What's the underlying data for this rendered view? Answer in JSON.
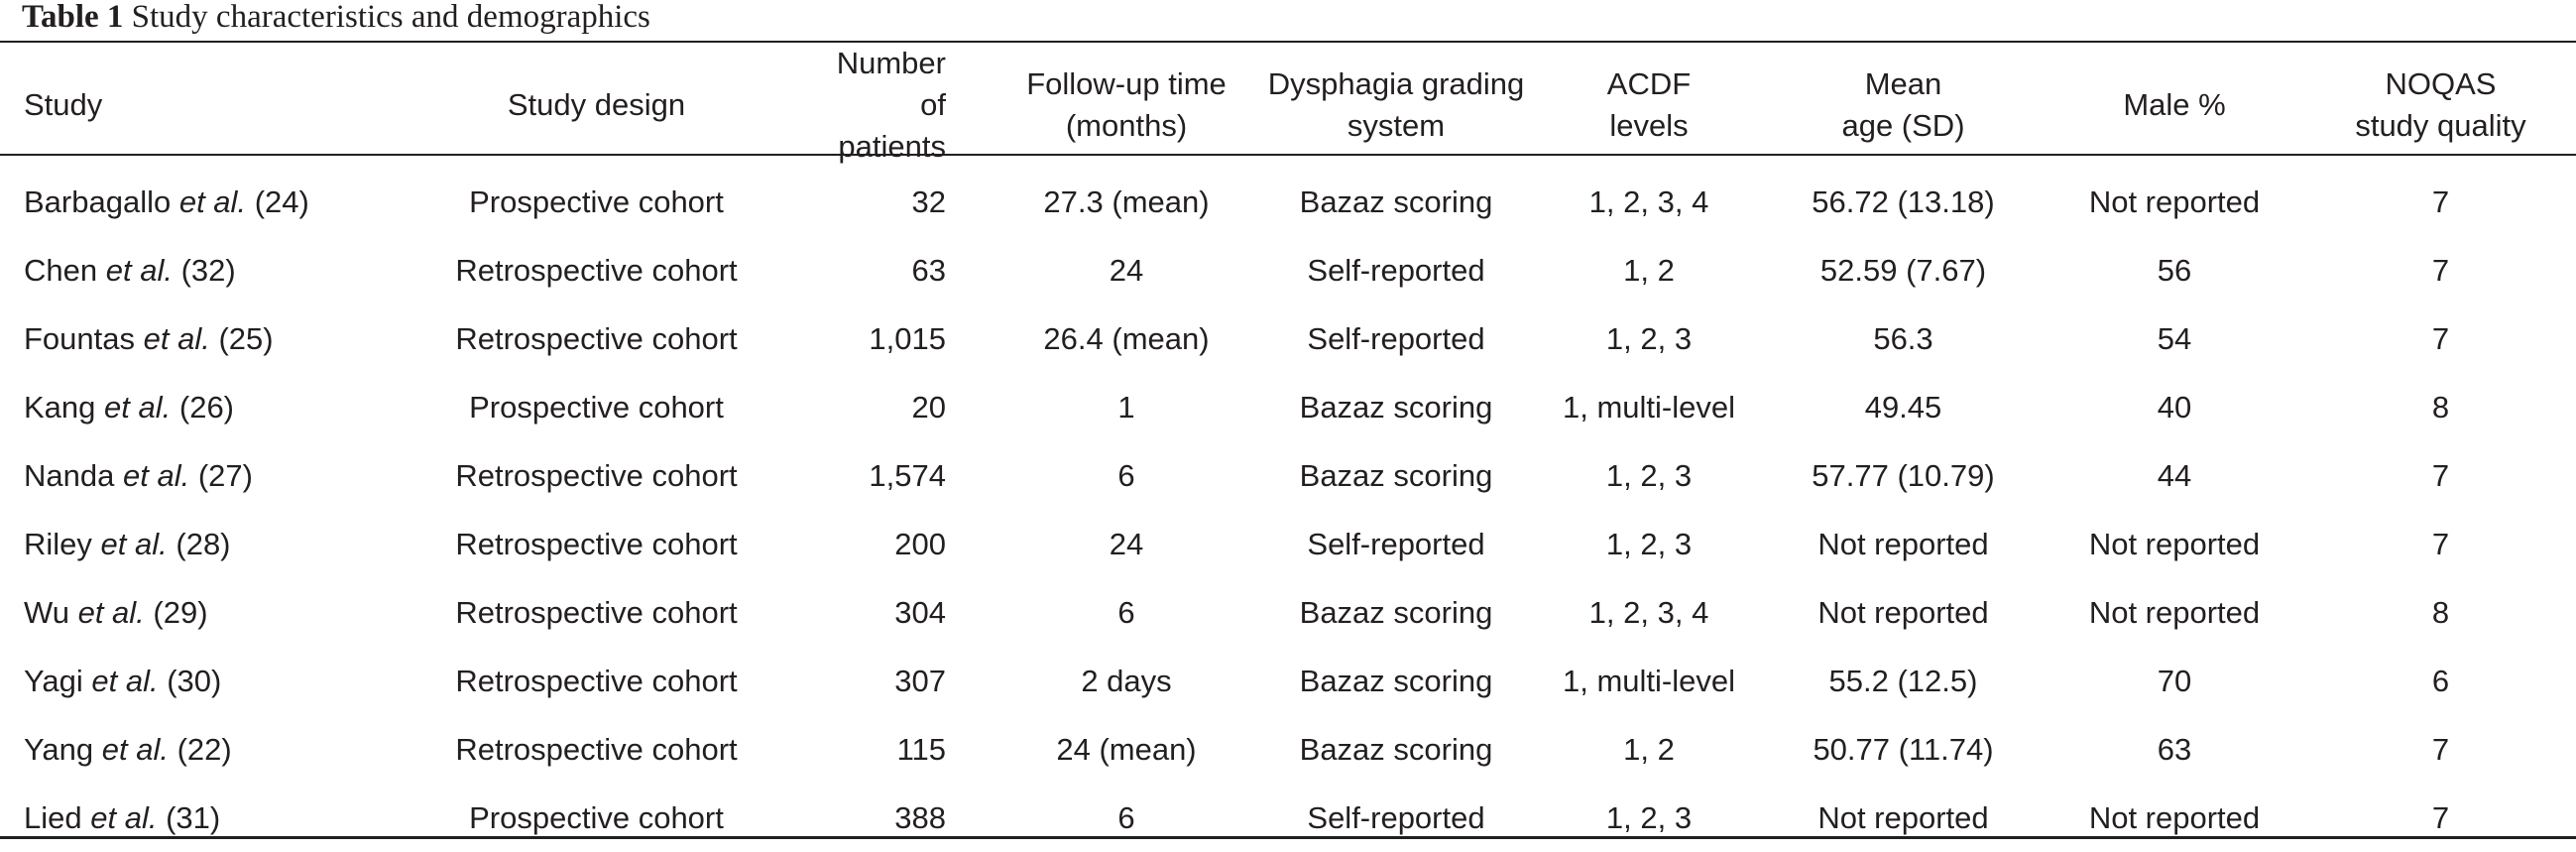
{
  "caption": {
    "label": "Table 1",
    "title": "Study characteristics and demographics"
  },
  "columns": [
    {
      "line1": "Study",
      "line2": ""
    },
    {
      "line1": "Study design",
      "line2": ""
    },
    {
      "line1": "Number of",
      "line2": "patients"
    },
    {
      "line1": "Follow-up time",
      "line2": "(months)"
    },
    {
      "line1": "Dysphagia grading",
      "line2": "system"
    },
    {
      "line1": "ACDF",
      "line2": "levels"
    },
    {
      "line1": "Mean",
      "line2": "age (SD)"
    },
    {
      "line1": "Male %",
      "line2": ""
    },
    {
      "line1": "NOQAS",
      "line2": "study quality"
    }
  ],
  "rows": [
    {
      "author": "Barbagallo",
      "etal": "et al.",
      "ref": "(24)",
      "design": "Prospective cohort",
      "patients": "32",
      "followup": "27.3 (mean)",
      "grading": "Bazaz scoring",
      "levels": "1, 2, 3, 4",
      "age": "56.72 (13.18)",
      "male": "Not reported",
      "quality": "7"
    },
    {
      "author": "Chen",
      "etal": "et al.",
      "ref": "(32)",
      "design": "Retrospective cohort",
      "patients": "63",
      "followup": "24",
      "grading": "Self-reported",
      "levels": "1, 2",
      "age": "52.59 (7.67)",
      "male": "56",
      "quality": "7"
    },
    {
      "author": "Fountas",
      "etal": "et al.",
      "ref": "(25)",
      "design": "Retrospective cohort",
      "patients": "1,015",
      "followup": "26.4 (mean)",
      "grading": "Self-reported",
      "levels": "1, 2, 3",
      "age": "56.3",
      "male": "54",
      "quality": "7"
    },
    {
      "author": "Kang",
      "etal": "et al.",
      "ref": "(26)",
      "design": "Prospective cohort",
      "patients": "20",
      "followup": "1",
      "grading": "Bazaz scoring",
      "levels": "1, multi-level",
      "age": "49.45",
      "male": "40",
      "quality": "8"
    },
    {
      "author": "Nanda",
      "etal": "et al.",
      "ref": "(27)",
      "design": "Retrospective cohort",
      "patients": "1,574",
      "followup": "6",
      "grading": "Bazaz scoring",
      "levels": "1, 2, 3",
      "age": "57.77 (10.79)",
      "male": "44",
      "quality": "7"
    },
    {
      "author": "Riley",
      "etal": "et al.",
      "ref": "(28)",
      "design": "Retrospective cohort",
      "patients": "200",
      "followup": "24",
      "grading": "Self-reported",
      "levels": "1, 2, 3",
      "age": "Not reported",
      "male": "Not reported",
      "quality": "7"
    },
    {
      "author": "Wu",
      "etal": "et al.",
      "ref": "(29)",
      "design": "Retrospective cohort",
      "patients": "304",
      "followup": "6",
      "grading": "Bazaz scoring",
      "levels": "1, 2, 3, 4",
      "age": "Not reported",
      "male": "Not reported",
      "quality": "8"
    },
    {
      "author": "Yagi",
      "etal": "et al.",
      "ref": "(30)",
      "design": "Retrospective cohort",
      "patients": "307",
      "followup": "2 days",
      "grading": "Bazaz scoring",
      "levels": "1, multi-level",
      "age": "55.2 (12.5)",
      "male": "70",
      "quality": "6"
    },
    {
      "author": "Yang",
      "etal": "et al.",
      "ref": "(22)",
      "design": "Retrospective cohort",
      "patients": "115",
      "followup": "24 (mean)",
      "grading": "Bazaz scoring",
      "levels": "1, 2",
      "age": "50.77 (11.74)",
      "male": "63",
      "quality": "7"
    },
    {
      "author": "Lied",
      "etal": "et al.",
      "ref": "(31)",
      "design": "Prospective cohort",
      "patients": "388",
      "followup": "6",
      "grading": "Self-reported",
      "levels": "1, 2, 3",
      "age": "Not reported",
      "male": "Not reported",
      "quality": "7"
    }
  ]
}
